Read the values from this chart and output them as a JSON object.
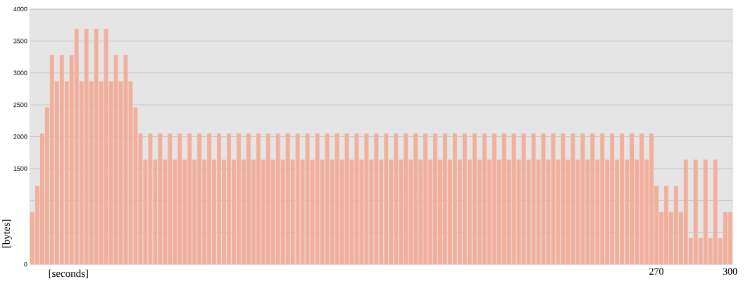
{
  "chart_data": {
    "type": "bar",
    "xlabel": "[seconds]",
    "ylabel": "[bytes]",
    "color": "#f2b09c",
    "grid": "y",
    "xlim": [
      15,
      301
    ],
    "xticks": [
      270,
      300
    ],
    "ylim": [
      0,
      4000
    ],
    "yticks": [
      0,
      {
        "value": 500,
        "label": null
      },
      {
        "value": 1000,
        "label": null
      },
      1500,
      2000,
      2500,
      3000,
      3500,
      4000
    ],
    "x": [
      16,
      18,
      20,
      22,
      24,
      26,
      28,
      30,
      32,
      34,
      36,
      38,
      40,
      42,
      44,
      46,
      48,
      50,
      52,
      54,
      56,
      58,
      60,
      62,
      64,
      66,
      68,
      70,
      72,
      74,
      76,
      78,
      80,
      82,
      84,
      86,
      88,
      90,
      92,
      94,
      96,
      98,
      100,
      102,
      104,
      106,
      108,
      110,
      112,
      114,
      116,
      118,
      120,
      122,
      124,
      126,
      128,
      130,
      132,
      134,
      136,
      138,
      140,
      142,
      144,
      146,
      148,
      150,
      152,
      154,
      156,
      158,
      160,
      162,
      164,
      166,
      168,
      170,
      172,
      174,
      176,
      178,
      180,
      182,
      184,
      186,
      188,
      190,
      192,
      194,
      196,
      198,
      200,
      202,
      204,
      206,
      208,
      210,
      212,
      214,
      216,
      218,
      220,
      222,
      224,
      226,
      228,
      230,
      232,
      234,
      236,
      238,
      240,
      242,
      244,
      246,
      248,
      250,
      252,
      254,
      256,
      258,
      260,
      262,
      264,
      266,
      268,
      270,
      272,
      274,
      276,
      278,
      280,
      282,
      284,
      286,
      288,
      290,
      292,
      294,
      296,
      298,
      300
    ],
    "values": [
      820,
      1230,
      2050,
      2460,
      3280,
      2870,
      3280,
      2870,
      3280,
      3690,
      2870,
      3690,
      2870,
      3690,
      2870,
      3690,
      2870,
      3280,
      2870,
      3280,
      2870,
      2460,
      2050,
      1640,
      2050,
      1640,
      2050,
      1640,
      2050,
      1640,
      2050,
      1640,
      2050,
      1640,
      2050,
      1640,
      2050,
      1640,
      2050,
      1640,
      2050,
      1640,
      2050,
      1640,
      2050,
      1640,
      2050,
      1640,
      2050,
      1640,
      2050,
      1640,
      2050,
      1640,
      2050,
      1640,
      2050,
      1640,
      2050,
      1640,
      2050,
      1640,
      2050,
      1640,
      2050,
      1640,
      2050,
      1640,
      2050,
      1640,
      2050,
      1640,
      2050,
      1640,
      2050,
      1640,
      2050,
      1640,
      2050,
      1640,
      2050,
      1640,
      2050,
      1640,
      2050,
      1640,
      2050,
      1640,
      2050,
      1640,
      2050,
      1640,
      2050,
      1640,
      2050,
      1640,
      2050,
      1640,
      2050,
      1640,
      2050,
      1640,
      2050,
      1640,
      2050,
      1640,
      2050,
      1640,
      2050,
      1640,
      2050,
      1640,
      2050,
      1640,
      2050,
      1640,
      2050,
      1640,
      2050,
      1640,
      2050,
      1640,
      2050,
      1640,
      2050,
      1640,
      2050,
      1230,
      820,
      1230,
      820,
      1230,
      820,
      1640,
      410,
      1640,
      410,
      1640,
      410,
      1640,
      410,
      820,
      820
    ]
  }
}
